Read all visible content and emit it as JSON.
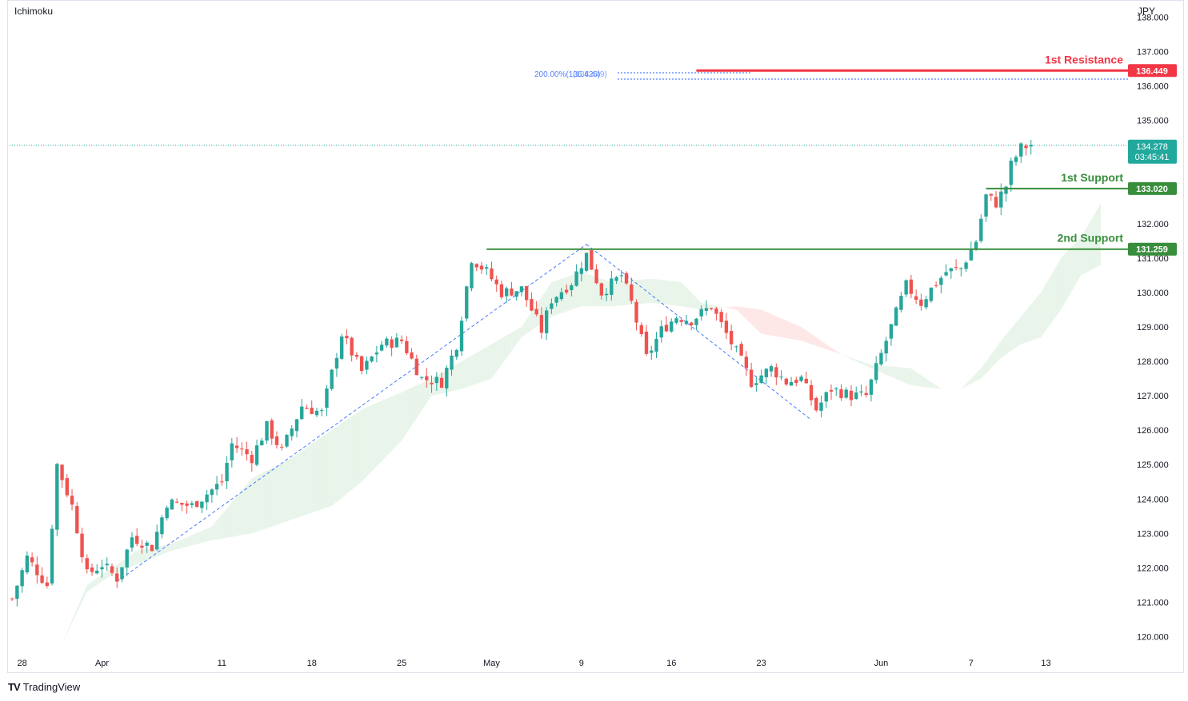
{
  "header": {
    "indicator": "Ichimoku",
    "currency": "JPY"
  },
  "footer": {
    "brand": "TradingView",
    "logo": "TV"
  },
  "colors": {
    "up": "#26a69a",
    "down": "#ef5350",
    "resistance": "#f23645",
    "support": "#388e3c",
    "fib": "#2962ff",
    "cloud_bull": "#4caf50",
    "cloud_bear": "#f44336",
    "price_tag": "#22a99e"
  },
  "chart_data": {
    "type": "candlestick",
    "title": "",
    "y_axis": {
      "ticks": [
        "120.000",
        "121.000",
        "122.000",
        "123.000",
        "124.000",
        "125.000",
        "126.000",
        "127.000",
        "128.000",
        "129.000",
        "130.000",
        "131.000",
        "132.000",
        "133.000",
        "134.000",
        "135.000",
        "136.000",
        "137.000",
        "138.000"
      ],
      "range": [
        119.5,
        138.5
      ]
    },
    "x_axis": {
      "labels": [
        {
          "text": "28",
          "bar": 2
        },
        {
          "text": "Apr",
          "bar": 18
        },
        {
          "text": "11",
          "bar": 42
        },
        {
          "text": "18",
          "bar": 60
        },
        {
          "text": "25",
          "bar": 78
        },
        {
          "text": "May",
          "bar": 96
        },
        {
          "text": "9",
          "bar": 114
        },
        {
          "text": "16",
          "bar": 132
        },
        {
          "text": "23",
          "bar": 150
        },
        {
          "text": "Jun",
          "bar": 174
        },
        {
          "text": "7",
          "bar": 192
        },
        {
          "text": "13",
          "bar": 207
        }
      ],
      "total_bars": 222
    },
    "close_path": [
      [
        0,
        121.1
      ],
      [
        3,
        122.3
      ],
      [
        7,
        121.5
      ],
      [
        9,
        125.0
      ],
      [
        12,
        123.8
      ],
      [
        15,
        121.8
      ],
      [
        18,
        122.1
      ],
      [
        21,
        121.7
      ],
      [
        24,
        122.9
      ],
      [
        28,
        122.6
      ],
      [
        31,
        123.9
      ],
      [
        36,
        123.8
      ],
      [
        42,
        124.5
      ],
      [
        44,
        125.6
      ],
      [
        48,
        125.2
      ],
      [
        51,
        126.1
      ],
      [
        54,
        125.4
      ],
      [
        58,
        126.7
      ],
      [
        62,
        126.5
      ],
      [
        66,
        128.8
      ],
      [
        70,
        127.7
      ],
      [
        74,
        128.5
      ],
      [
        78,
        128.6
      ],
      [
        82,
        127.5
      ],
      [
        86,
        127.4
      ],
      [
        89,
        128.5
      ],
      [
        92,
        131.0
      ],
      [
        95,
        130.6
      ],
      [
        98,
        130.0
      ],
      [
        102,
        130.1
      ],
      [
        106,
        128.9
      ],
      [
        108,
        129.8
      ],
      [
        112,
        130.3
      ],
      [
        115,
        131.1
      ],
      [
        118,
        130.0
      ],
      [
        122,
        130.5
      ],
      [
        124,
        129.7
      ],
      [
        127,
        128.1
      ],
      [
        130,
        128.9
      ],
      [
        133,
        129.3
      ],
      [
        136,
        129.2
      ],
      [
        140,
        129.6
      ],
      [
        143,
        128.8
      ],
      [
        146,
        128.0
      ],
      [
        148,
        127.4
      ],
      [
        152,
        127.8
      ],
      [
        155,
        127.4
      ],
      [
        158,
        127.5
      ],
      [
        161,
        126.6
      ],
      [
        164,
        127.2
      ],
      [
        168,
        127.0
      ],
      [
        171,
        127.0
      ],
      [
        174,
        128.2
      ],
      [
        176,
        129.0
      ],
      [
        179,
        130.2
      ],
      [
        182,
        129.7
      ],
      [
        184,
        130.1
      ],
      [
        187,
        130.6
      ],
      [
        190,
        130.7
      ],
      [
        193,
        131.5
      ],
      [
        195,
        132.8
      ],
      [
        197,
        132.6
      ],
      [
        199,
        133.1
      ],
      [
        200,
        133.7
      ],
      [
        202,
        134.2
      ],
      [
        204,
        134.3
      ]
    ],
    "horizontal_levels": [
      {
        "label": "1st Resistance",
        "value": 136.449,
        "value_text": "136.449",
        "from_bar": 137,
        "kind": "resistance"
      },
      {
        "label": "1st Support",
        "value": 133.02,
        "value_text": "133.020",
        "from_bar": 195,
        "kind": "support"
      },
      {
        "label": "2nd Support",
        "value": 131.259,
        "value_text": "131.259",
        "from_bar": 95,
        "kind": "support"
      }
    ],
    "fib_extension": {
      "points": [
        [
          21,
          121.6
        ],
        [
          115,
          131.4
        ],
        [
          160,
          126.3
        ]
      ],
      "target_value": 136.2,
      "label_text": "200.00%(136.426)",
      "label_overlap_text": "(136.449)"
    },
    "last_price": {
      "value": 134.278,
      "value_text": "134.278",
      "countdown": "03:45:41"
    },
    "ichimoku_cloud": {
      "span_a": [
        [
          10,
          119.8
        ],
        [
          15,
          121.5
        ],
        [
          20,
          122.0
        ],
        [
          25,
          122.5
        ],
        [
          32,
          122.7
        ],
        [
          40,
          123.2
        ],
        [
          48,
          124.6
        ],
        [
          56,
          125.2
        ],
        [
          64,
          126.0
        ],
        [
          70,
          126.6
        ],
        [
          78,
          127.1
        ],
        [
          84,
          127.5
        ],
        [
          90,
          128.0
        ],
        [
          96,
          128.5
        ],
        [
          102,
          129.0
        ],
        [
          108,
          130.3
        ],
        [
          114,
          130.6
        ],
        [
          120,
          130.3
        ],
        [
          128,
          130.4
        ],
        [
          134,
          130.3
        ],
        [
          138,
          129.7
        ],
        [
          145,
          129.5
        ],
        [
          150,
          128.8
        ],
        [
          158,
          128.6
        ],
        [
          166,
          128.2
        ],
        [
          172,
          127.9
        ],
        [
          180,
          127.8
        ],
        [
          186,
          127.2
        ],
        [
          190,
          127.2
        ],
        [
          194,
          127.8
        ],
        [
          198,
          128.6
        ],
        [
          202,
          129.3
        ],
        [
          206,
          130.0
        ],
        [
          210,
          131.0
        ],
        [
          214,
          131.6
        ],
        [
          218,
          132.6
        ]
      ],
      "span_b": [
        [
          10,
          119.8
        ],
        [
          15,
          121.3
        ],
        [
          20,
          121.8
        ],
        [
          25,
          122.1
        ],
        [
          32,
          122.5
        ],
        [
          40,
          122.8
        ],
        [
          48,
          123.0
        ],
        [
          56,
          123.4
        ],
        [
          64,
          123.8
        ],
        [
          70,
          124.5
        ],
        [
          78,
          125.7
        ],
        [
          84,
          127.0
        ],
        [
          90,
          127.2
        ],
        [
          96,
          127.5
        ],
        [
          102,
          128.7
        ],
        [
          108,
          129.3
        ],
        [
          114,
          129.6
        ],
        [
          120,
          129.6
        ],
        [
          128,
          129.7
        ],
        [
          134,
          129.6
        ],
        [
          138,
          129.5
        ],
        [
          145,
          129.6
        ],
        [
          150,
          129.5
        ],
        [
          158,
          129.0
        ],
        [
          166,
          128.2
        ],
        [
          172,
          127.8
        ],
        [
          180,
          127.3
        ],
        [
          186,
          127.2
        ],
        [
          190,
          127.2
        ],
        [
          194,
          127.5
        ],
        [
          198,
          128.1
        ],
        [
          202,
          128.5
        ],
        [
          206,
          128.7
        ],
        [
          210,
          129.5
        ],
        [
          214,
          130.5
        ],
        [
          218,
          130.8
        ]
      ]
    }
  }
}
